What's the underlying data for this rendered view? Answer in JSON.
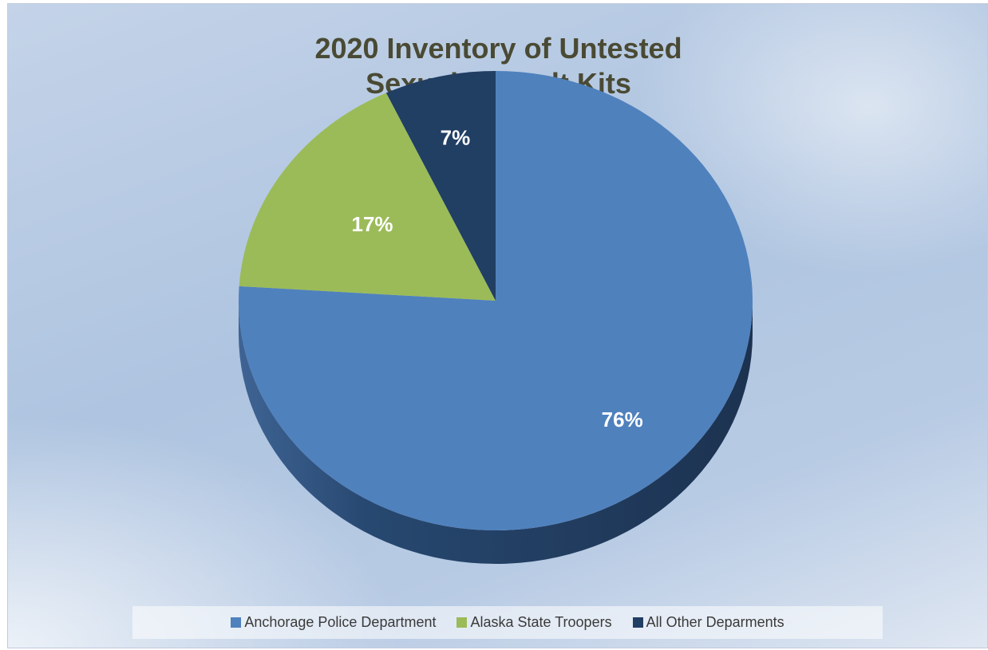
{
  "chart_data": {
    "type": "pie",
    "title_lines": [
      "2020 Inventory of Untested",
      "Sexual Assault Kits"
    ],
    "categories": [
      "Anchorage Police Department",
      "Alaska State Troopers",
      "All Other Deparments"
    ],
    "values": [
      76,
      17,
      7
    ],
    "data_labels": [
      "76%",
      "17%",
      "7%"
    ],
    "colors": [
      "#4f81bd",
      "#9bbb59",
      "#213e63"
    ],
    "legend_position": "bottom"
  }
}
